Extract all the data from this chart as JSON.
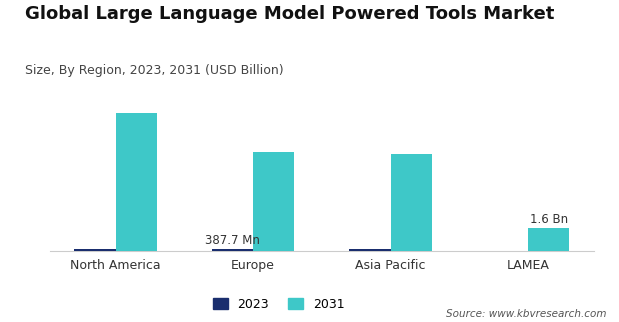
{
  "title": "Global Large Language Model Powered Tools Market",
  "subtitle": "Size, By Region, 2023, 2031 (USD Billion)",
  "source": "Source: www.kbvresearch.com",
  "categories": [
    "North America",
    "Europe",
    "Asia Pacific",
    "LAMEA"
  ],
  "values_2023": [
    0.18,
    0.15,
    0.13,
    0.04
  ],
  "values_2031": [
    9.5,
    6.8,
    6.7,
    1.6
  ],
  "color_2023": "#1a2e6e",
  "color_2031": "#3ec8c8",
  "bar_width": 0.3,
  "ylim": [
    0,
    11.5
  ],
  "legend_labels": [
    "2023",
    "2031"
  ],
  "annotation_europe": "387.7 Mn",
  "annotation_lamea": "1.6 Bn",
  "background_color": "#ffffff",
  "title_fontsize": 13,
  "subtitle_fontsize": 9,
  "tick_fontsize": 9,
  "source_fontsize": 7.5,
  "annotation_fontsize": 8.5,
  "legend_fontsize": 9
}
